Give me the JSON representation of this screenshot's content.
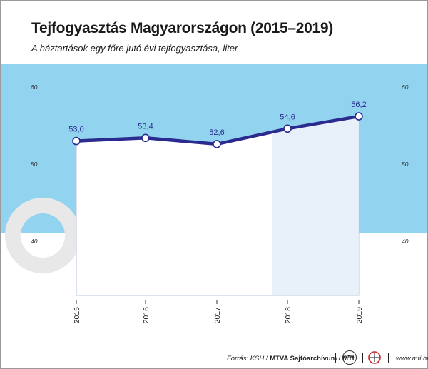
{
  "header": {
    "title": "Tejfogyasztás Magyarországon (2015–2019)",
    "subtitle": "A háztartások egy főre jutó évi tejfogyasztása, liter"
  },
  "colors": {
    "band": "#92d4ef",
    "line": "#2b2b8f",
    "panel": "#ffffff",
    "highlight": "#e6eef8"
  },
  "chart_data": {
    "type": "line",
    "x": [
      "2015",
      "2016",
      "2017",
      "2018",
      "2019"
    ],
    "series": [
      {
        "values": [
          53.0,
          53.4,
          52.6,
          54.6,
          56.2
        ]
      }
    ],
    "data_labels": [
      "53,0",
      "53,4",
      "52,6",
      "54,6",
      "56,2"
    ],
    "y_ticks": [
      40,
      50,
      60
    ],
    "ylim": [
      40,
      60
    ],
    "grid": false
  },
  "footer": {
    "source_prefix": "Forrás: KSH / ",
    "source_bold": "MTVA Sajtóarchívum / MTI",
    "logo_text": "MTVA",
    "website": "www.mti.hu"
  }
}
